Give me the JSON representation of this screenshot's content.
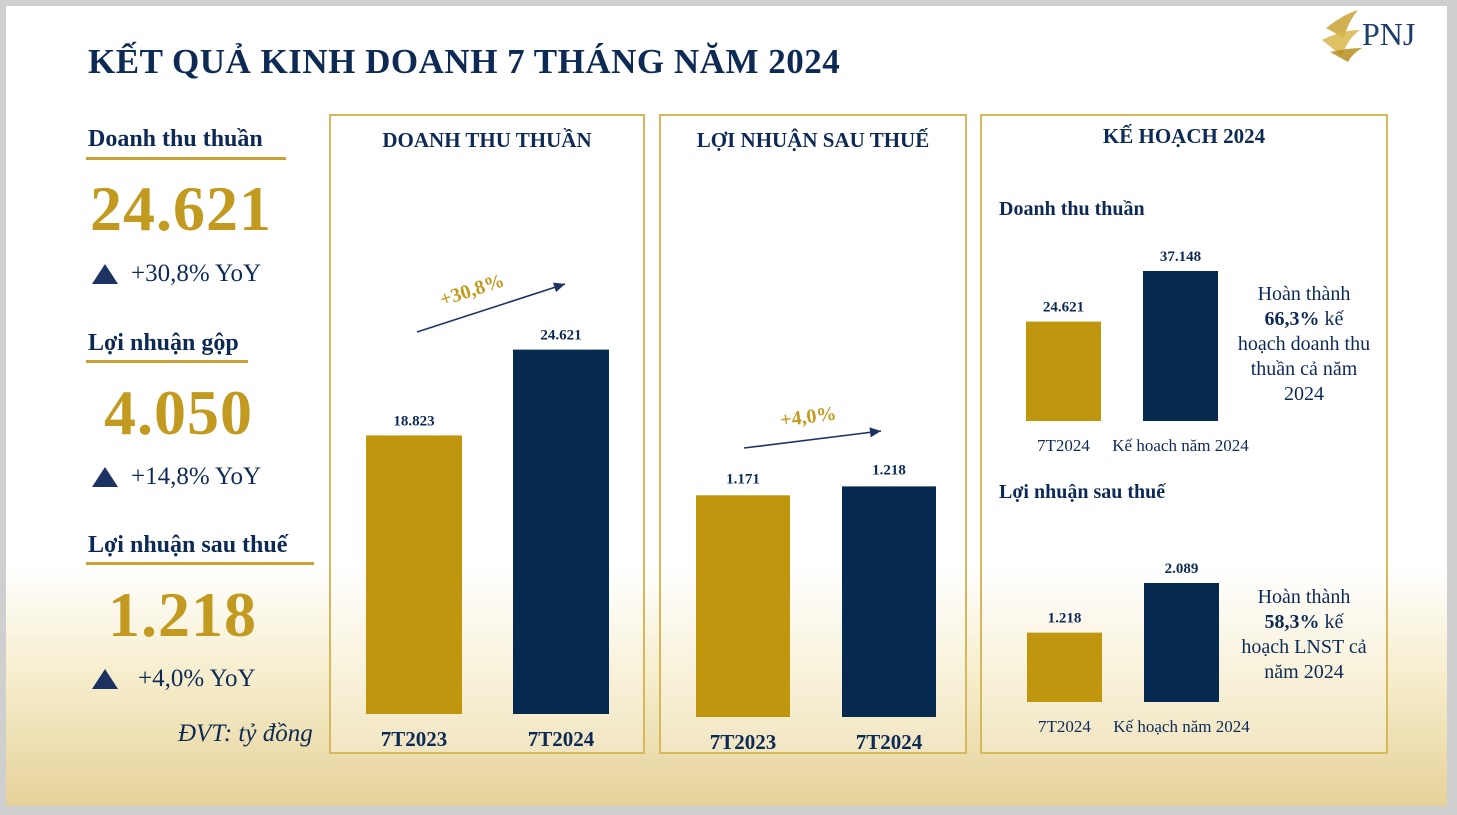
{
  "title": "KẾT QUẢ KINH DOANH 7 THÁNG NĂM 2024",
  "logo": {
    "text": "PNJ"
  },
  "colors": {
    "navy": "#0d2a55",
    "gold": "#c19a1f",
    "bar_gold": "#c0960f",
    "bar_navy": "#062950",
    "frame": "#d6b85a"
  },
  "kpis": [
    {
      "label": "Doanh thu thuần",
      "value": "24.621",
      "yoy": "+30,8% YoY"
    },
    {
      "label": "Lợi nhuận gộp",
      "value": "4.050",
      "yoy": "+14,8% YoY"
    },
    {
      "label": "Lợi nhuận sau thuế",
      "value": "1.218",
      "yoy": "+4,0% YoY"
    }
  ],
  "unit_note": "ĐVT: tỷ đồng",
  "plan": {
    "title": "KẾ HOẠCH 2024",
    "revenue_note": {
      "line1": "Hoàn thành",
      "pct": "66,3%",
      "tail": " kế",
      "rest": "hoạch doanh thu thuần cả năm 2024"
    },
    "profit_note": {
      "line1": "Hoàn thành",
      "pct": "58,3%",
      "tail": " kế",
      "rest": "hoạch LNST cả năm 2024"
    }
  },
  "chart_data": [
    {
      "type": "bar",
      "title": "DOANH THU THUẦN",
      "categories": [
        "7T2023",
        "7T2024"
      ],
      "values": [
        18823,
        24621
      ],
      "value_labels": [
        "18.823",
        "24.621"
      ],
      "annotation": "+30,8%",
      "ylim": [
        0,
        30000
      ]
    },
    {
      "type": "bar",
      "title": "LỢI NHUẬN SAU THUẾ",
      "categories": [
        "7T2023",
        "7T2024"
      ],
      "values": [
        1171,
        1218
      ],
      "value_labels": [
        "1.171",
        "1.218"
      ],
      "annotation": "+4,0%",
      "ylim": [
        0,
        1500
      ]
    },
    {
      "type": "bar",
      "title": "Doanh thu thuần",
      "categories": [
        "7T2024",
        "Kế hoạch năm 2024"
      ],
      "values": [
        24621,
        37148
      ],
      "value_labels": [
        "24.621",
        "37.148"
      ],
      "ylim": [
        0,
        37148
      ]
    },
    {
      "type": "bar",
      "title": "Lợi nhuận sau thuế",
      "categories": [
        "7T2024",
        "Kế hoạch năm 2024"
      ],
      "values": [
        1218,
        2089
      ],
      "value_labels": [
        "1.218",
        "2.089"
      ],
      "ylim": [
        0,
        2089
      ]
    }
  ]
}
